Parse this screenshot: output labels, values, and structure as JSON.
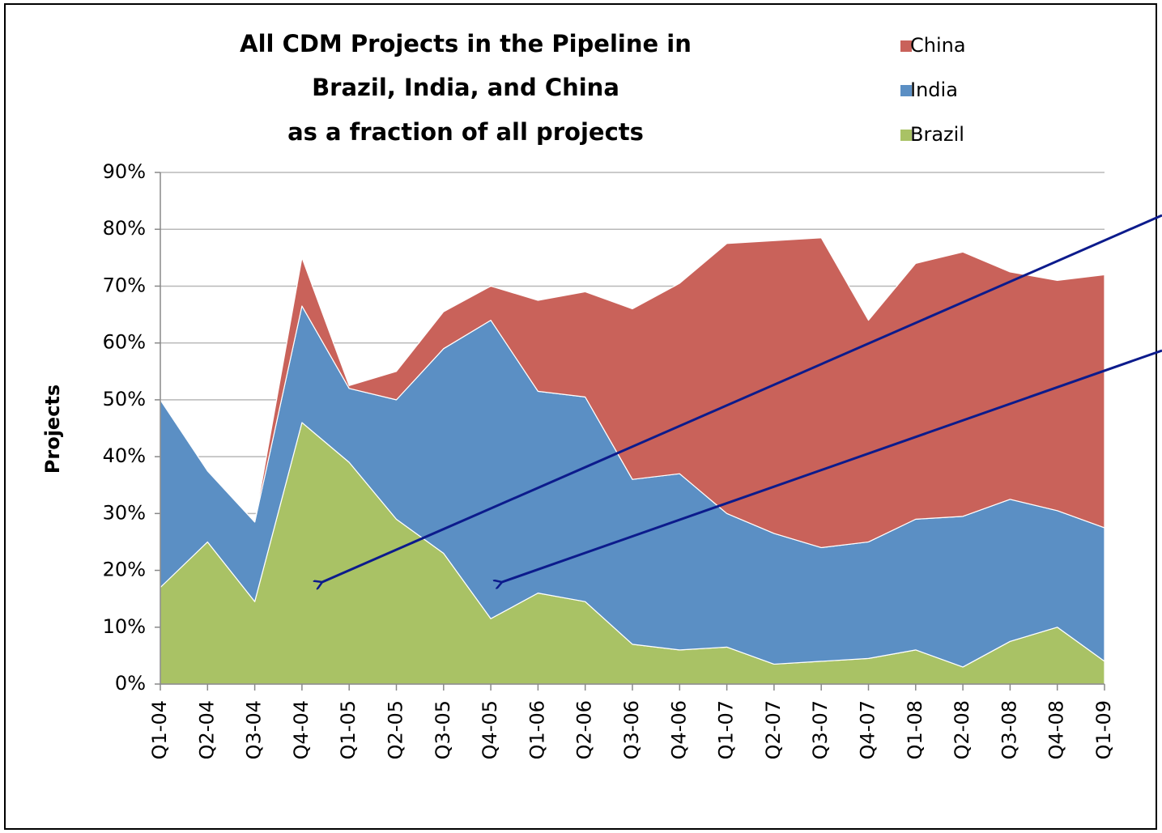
{
  "chart_data": {
    "type": "stacked_area",
    "title": [
      "All CDM Projects in the Pipeline in",
      "Brazil, India, and China",
      "as a fraction of all projects"
    ],
    "y_label": "Projects",
    "categories": [
      "Q1-04",
      "Q2-04",
      "Q3-04",
      "Q4-04",
      "Q1-05",
      "Q2-05",
      "Q3-05",
      "Q4-05",
      "Q1-06",
      "Q2-06",
      "Q3-06",
      "Q4-06",
      "Q1-07",
      "Q2-07",
      "Q3-07",
      "Q4-07",
      "Q1-08",
      "Q2-08",
      "Q3-08",
      "Q4-08",
      "Q1-09"
    ],
    "series": [
      {
        "name": "Brazil",
        "color": "#a9c265",
        "values": [
          17,
          25,
          14.5,
          46,
          39,
          29,
          23,
          11.5,
          16,
          14.5,
          7,
          6,
          6.5,
          3.5,
          4,
          4.5,
          6,
          3,
          7.5,
          10,
          4
        ]
      },
      {
        "name": "India",
        "color": "#5b8fc4",
        "values": [
          33,
          12.5,
          14,
          20.5,
          13,
          21,
          36,
          52.5,
          35.5,
          36,
          29,
          31,
          23.5,
          23,
          20,
          20.5,
          23,
          26.5,
          25,
          20.5,
          23.5
        ]
      },
      {
        "name": "China",
        "color": "#c9625a",
        "values": [
          0,
          0,
          0,
          8.5,
          0.5,
          5,
          6.5,
          6,
          16,
          18.5,
          30,
          33.5,
          47.5,
          51.5,
          54.5,
          39,
          45,
          46.5,
          40,
          40.5,
          44.5
        ]
      }
    ],
    "ylim": [
      0,
      90
    ],
    "yticks": [
      {
        "value": 0,
        "label": "0%"
      },
      {
        "value": 10,
        "label": "10%"
      },
      {
        "value": 20,
        "label": "20%"
      },
      {
        "value": 30,
        "label": "30%"
      },
      {
        "value": 40,
        "label": "40%"
      },
      {
        "value": 50,
        "label": "50%"
      },
      {
        "value": 60,
        "label": "60%"
      },
      {
        "value": 70,
        "label": "70%"
      },
      {
        "value": 80,
        "label": "80%"
      },
      {
        "value": 90,
        "label": "90%"
      }
    ],
    "grid": true,
    "legend": "top-right"
  }
}
